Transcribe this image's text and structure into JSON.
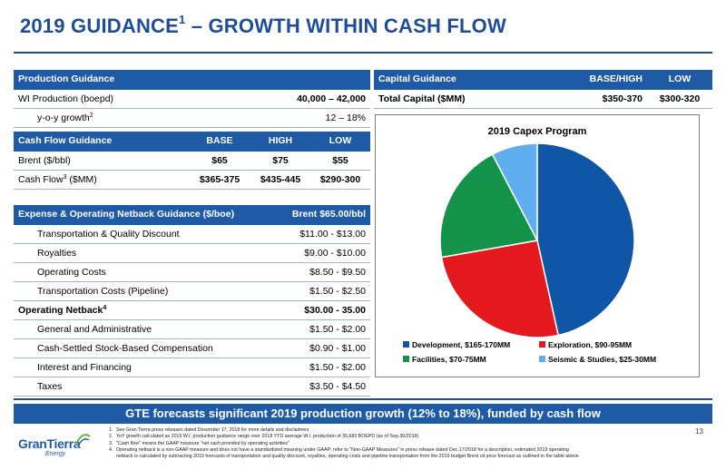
{
  "title": {
    "text": "2019 GUIDANCE",
    "sup": "1",
    "rest": " – GROWTH WITHIN CASH FLOW"
  },
  "production": {
    "header": "Production Guidance",
    "rows": [
      {
        "label": "WI Production (boepd)",
        "value": "40,000 – 42,000"
      },
      {
        "label": "y-o-y growth",
        "sup": "2",
        "value": "12 – 18%"
      }
    ]
  },
  "cashflow": {
    "header": [
      "Cash Flow Guidance",
      "BASE",
      "HIGH",
      "LOW"
    ],
    "rows": [
      {
        "label": "Brent ($/bbl)",
        "base": "$65",
        "high": "$75",
        "low": "$55"
      },
      {
        "label": "Cash Flow",
        "sup": "3",
        "suffix": " ($MM)",
        "base": "$365-375",
        "high": "$435-445",
        "low": "$290-300"
      }
    ]
  },
  "netback": {
    "header": [
      "Expense & Operating Netback Guidance  ($/boe)",
      "Brent $65.00/bbl"
    ],
    "rows": [
      {
        "label": "Transportation & Quality Discount",
        "value": "$11.00 - $13.00",
        "bold": false
      },
      {
        "label": "Royalties",
        "value": "$9.00 - $10.00",
        "bold": false
      },
      {
        "label": "Operating Costs",
        "value": "$8.50 - $9.50",
        "bold": false
      },
      {
        "label": "Transportation Costs (Pipeline)",
        "value": "$1.50 - $2.50",
        "bold": false
      },
      {
        "label": "Operating Netback",
        "sup": "4",
        "value": "$30.00 - 35.00",
        "bold": true
      },
      {
        "label": "General and Administrative",
        "value": "$1.50 - $2.00",
        "bold": false
      },
      {
        "label": "Cash-Settled Stock-Based Compensation",
        "value": "$0.90 - $1.00",
        "bold": false
      },
      {
        "label": "Interest and Financing",
        "value": "$1.50 - $2.00",
        "bold": false
      },
      {
        "label": "Taxes",
        "value": "$3.50 - $4.50",
        "bold": false
      }
    ]
  },
  "capital": {
    "header": [
      "Capital Guidance",
      "BASE/HIGH",
      "LOW"
    ],
    "row": {
      "label": "Total Capital ($MM)",
      "base": "$350-370",
      "low": "$300-320"
    }
  },
  "chart_data": {
    "type": "pie",
    "title": "2019 Capex Program",
    "slices": [
      {
        "label": "Development, $165-170MM",
        "value": 167.5,
        "color": "#0f56a7"
      },
      {
        "label": "Exploration, $90-95MM",
        "value": 92.5,
        "color": "#e3191e"
      },
      {
        "label": "Facilities, $70-75MM",
        "value": 72.5,
        "color": "#16934a"
      },
      {
        "label": "Seismic & Studies, $25-30MM",
        "value": 27.5,
        "color": "#5eaef0"
      }
    ],
    "legend_position": "bottom"
  },
  "banner": "GTE forecasts significant 2019 production growth (12% to 18%), funded by cash flow",
  "logo": {
    "name": "GranTierra",
    "sub": "Energy"
  },
  "notes": [
    {
      "n": "1.",
      "text": "See Gran Tierra press releases dated December 17, 2018 for more details and disclaimers"
    },
    {
      "n": "2.",
      "text": "YoY growth calculated as 2019 W.I. production guidance range over 2018 YTD average W.I. production of 35,683 BOEPD (as of Sep.30/2018)"
    },
    {
      "n": "3.",
      "text": "\"Cash flow\" means the GAAP measure \"net cash provided by operating activities\""
    },
    {
      "n": "4.",
      "text": "Operating netback is a non-GAAP measure and does not have a standardized meaning under GAAP; refer to \"Non-GAAP Measures\" in press release dated Dec.17/2018 for a description; estimated 2019 operating"
    },
    {
      "n": "",
      "text": "netback is calculated by subtracting 2019 forecasts of transportation and quality discount, royalties, operating costs and pipeline transportation from the 2019 budget Brent oil price forecast as outlined in the table above"
    }
  ],
  "page_number": "13",
  "colors": {
    "brand_blue": "#1f4e96",
    "header_blue": "#1f5aa6"
  }
}
